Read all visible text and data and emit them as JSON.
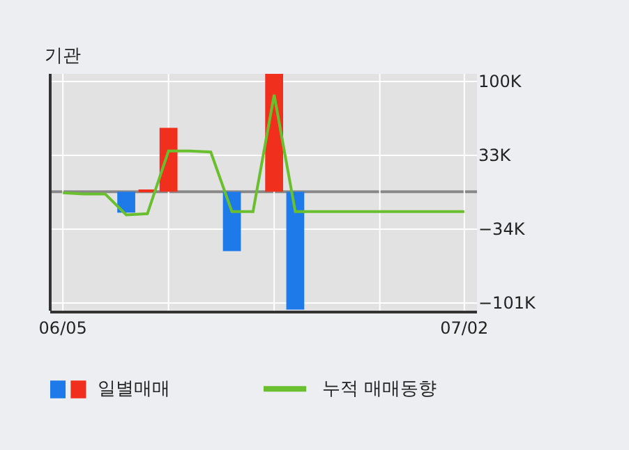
{
  "chart_data": {
    "type": "bar",
    "title": "기관",
    "categories": [
      "06/05",
      null,
      null,
      null,
      null,
      null,
      null,
      null,
      null,
      null,
      null,
      null,
      null,
      null,
      null,
      null,
      null,
      null,
      null,
      "07/02"
    ],
    "series": [
      {
        "name": "일별매매",
        "color": "#1e7ae8",
        "colors": [
          "#1e7ae8",
          "#1e7ae8",
          "#1e7ae8",
          "#1e7ae8",
          "#f0301c",
          "#f0301c",
          "#f0301c",
          "#f0301c",
          "#1e7ae8",
          "#1e7ae8",
          "#f0301c",
          "#1e7ae8",
          "#1e7ae8",
          "#1e7ae8",
          "#1e7ae8",
          "#1e7ae8",
          "#1e7ae8",
          "#1e7ae8",
          "#1e7ae8",
          "#1e7ae8"
        ],
        "values": [
          null,
          null,
          null,
          -19,
          2,
          58,
          null,
          null,
          -54,
          null,
          107,
          -107,
          null,
          null,
          null,
          null,
          null,
          null,
          null,
          null
        ]
      },
      {
        "name": "누적 매매동향",
        "type": "line",
        "color": "#6abf2e",
        "values": [
          -1,
          -2,
          -2,
          -21,
          -20,
          37,
          37,
          36,
          -18,
          -18,
          88,
          -18,
          -18,
          -18,
          -18,
          -18,
          -18,
          -18,
          -18,
          -18
        ]
      }
    ],
    "ylim": [
      -108,
      107
    ],
    "yticks": [
      {
        "value": 100,
        "label": "100K"
      },
      {
        "value": 33,
        "label": "33K"
      },
      {
        "value": -34,
        "label": "−34K"
      },
      {
        "value": -101,
        "label": "−101K"
      }
    ],
    "ref_lines": [
      {
        "axis": "y",
        "value": 0,
        "color": "#888888"
      }
    ],
    "grid": true,
    "legend": "bottom",
    "marker": "none",
    "line_style": "solid"
  }
}
